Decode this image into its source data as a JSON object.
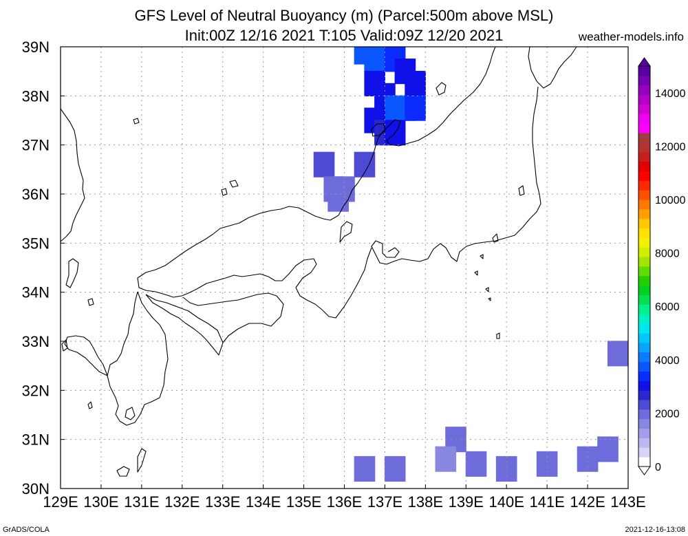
{
  "chart_data": {
    "type": "heatmap",
    "title": "GFS Level of Neutral Buoyancy (m) (Parcel:500m above MSL)",
    "subtitle": "Init:00Z 12/16 2021 T:105 Valid:09Z 12/20 2021",
    "source": "weather-models.info",
    "footer_left": "GrADS/COLA",
    "footer_right": "2021-12-16-13:08",
    "x_range": [
      129,
      143
    ],
    "y_range": [
      30,
      39
    ],
    "x_ticks": [
      "129E",
      "130E",
      "131E",
      "132E",
      "133E",
      "134E",
      "135E",
      "136E",
      "137E",
      "138E",
      "139E",
      "140E",
      "141E",
      "142E",
      "143E"
    ],
    "y_ticks": [
      "30N",
      "31N",
      "32N",
      "33N",
      "34N",
      "35N",
      "36N",
      "37N",
      "38N",
      "39N"
    ],
    "grid": true,
    "colorbar": {
      "position": "right",
      "tick_labels": [
        "0",
        "2000",
        "4000",
        "6000",
        "8000",
        "10000",
        "12000",
        "14000"
      ],
      "range": [
        0,
        15000
      ],
      "colors": [
        "#ffffff",
        "#d7d5f7",
        "#bcb9f0",
        "#a29ee9",
        "#8a87e0",
        "#6e6bda",
        "#4d4ad3",
        "#2a27cc",
        "#1010e8",
        "#0a2cff",
        "#0a56ff",
        "#0a7dff",
        "#08a4ff",
        "#00c8ff",
        "#00e6f0",
        "#00f0c8",
        "#00f08c",
        "#00e050",
        "#00d020",
        "#20d000",
        "#60dc00",
        "#a0e600",
        "#d2ee00",
        "#f0f000",
        "#ffe000",
        "#ffc800",
        "#ffa000",
        "#ff7800",
        "#ff5000",
        "#ff2800",
        "#ff0000",
        "#e00000",
        "#c81e1e",
        "#b43232",
        "#a03c3c",
        "#ff00ff",
        "#f000f0",
        "#d200d2",
        "#b400c8",
        "#9600be",
        "#7800b4",
        "#5a00a0"
      ]
    },
    "data_cells": [
      {
        "lon": 136.5,
        "lat": 38.9,
        "value": 3600
      },
      {
        "lon": 136.75,
        "lat": 38.75,
        "value": 3800
      },
      {
        "lon": 137.0,
        "lat": 38.75,
        "value": 3600
      },
      {
        "lon": 137.25,
        "lat": 38.75,
        "value": 3400
      },
      {
        "lon": 137.5,
        "lat": 38.5,
        "value": 3200
      },
      {
        "lon": 137.75,
        "lat": 38.25,
        "value": 3000
      },
      {
        "lon": 136.75,
        "lat": 38.25,
        "value": 3000
      },
      {
        "lon": 137.0,
        "lat": 38.0,
        "value": 3200
      },
      {
        "lon": 137.25,
        "lat": 37.75,
        "value": 3600
      },
      {
        "lon": 137.5,
        "lat": 37.75,
        "value": 3800
      },
      {
        "lon": 137.75,
        "lat": 37.75,
        "value": 3400
      },
      {
        "lon": 136.75,
        "lat": 37.5,
        "value": 3000
      },
      {
        "lon": 137.0,
        "lat": 37.25,
        "value": 2800
      },
      {
        "lon": 137.25,
        "lat": 37.25,
        "value": 3000
      },
      {
        "lon": 135.5,
        "lat": 36.6,
        "value": 2200
      },
      {
        "lon": 136.5,
        "lat": 36.6,
        "value": 2200
      },
      {
        "lon": 135.75,
        "lat": 36.1,
        "value": 1900
      },
      {
        "lon": 136.0,
        "lat": 36.1,
        "value": 1900
      },
      {
        "lon": 135.85,
        "lat": 35.9,
        "value": 1800
      },
      {
        "lon": 142.75,
        "lat": 32.75,
        "value": 1900
      },
      {
        "lon": 136.5,
        "lat": 30.4,
        "value": 1900
      },
      {
        "lon": 137.25,
        "lat": 30.4,
        "value": 1900
      },
      {
        "lon": 138.75,
        "lat": 31.0,
        "value": 1900
      },
      {
        "lon": 138.5,
        "lat": 30.6,
        "value": 1700
      },
      {
        "lon": 139.25,
        "lat": 30.5,
        "value": 1900
      },
      {
        "lon": 140.0,
        "lat": 30.4,
        "value": 1900
      },
      {
        "lon": 141.0,
        "lat": 30.5,
        "value": 1900
      },
      {
        "lon": 142.0,
        "lat": 30.6,
        "value": 1900
      },
      {
        "lon": 142.5,
        "lat": 30.8,
        "value": 1900
      }
    ]
  },
  "ui": {
    "title_line1": "GFS Level of Neutral Buoyancy (m) (Parcel:500m above MSL)",
    "title_line2": "Init:00Z 12/16 2021 T:105 Valid:09Z 12/20 2021",
    "site": "weather-models.info",
    "footer_left": "GrADS/COLA",
    "footer_right": "2021-12-16-13:08"
  }
}
